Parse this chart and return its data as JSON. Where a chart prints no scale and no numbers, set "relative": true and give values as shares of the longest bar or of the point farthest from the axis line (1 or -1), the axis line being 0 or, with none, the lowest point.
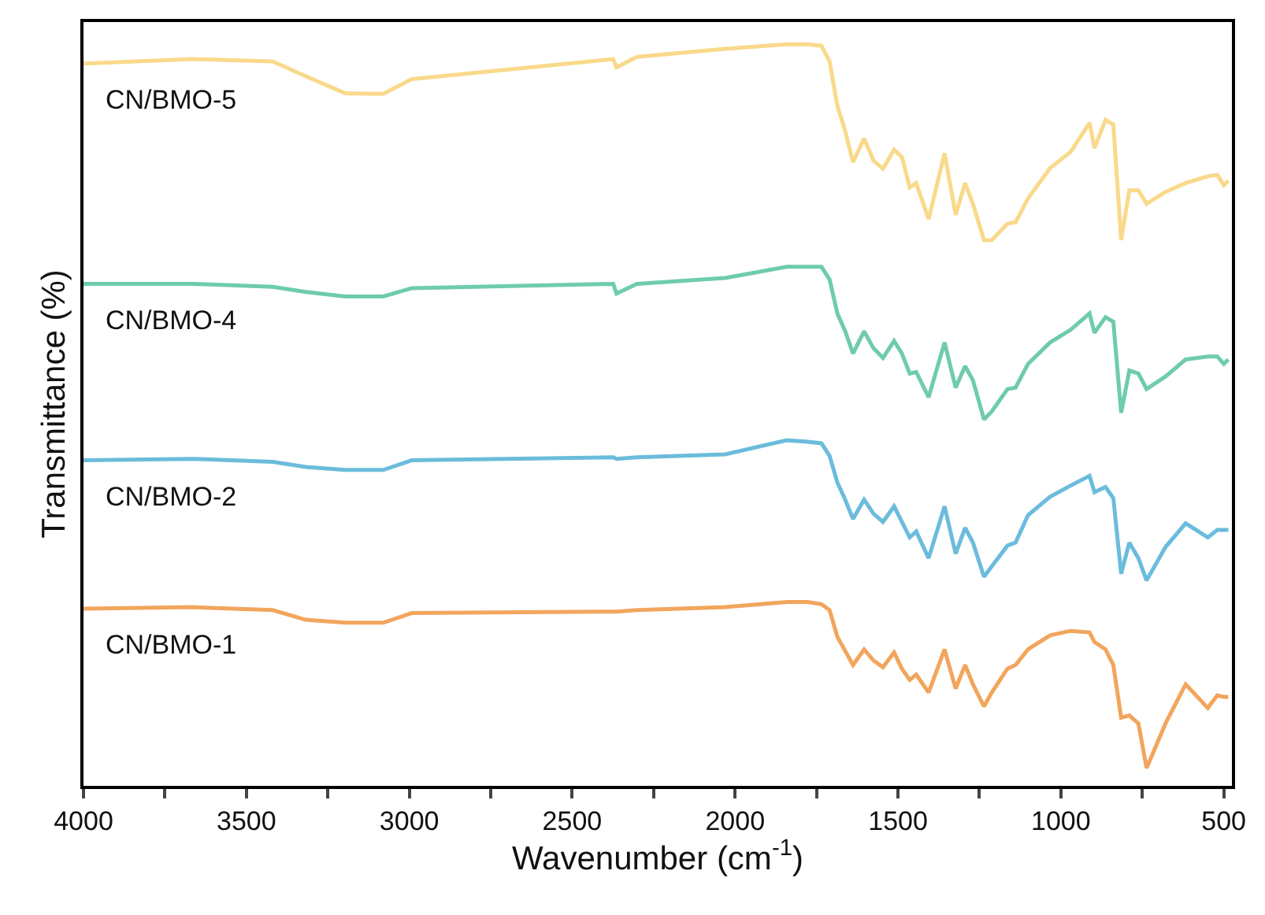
{
  "chart_data": {
    "type": "line",
    "relative": true,
    "xlabel": "Wavenumber (cm$^{-1}$)",
    "ylabel": "Transmittance (%)",
    "legend": false,
    "marker": "none",
    "line_style": "solid",
    "xlim": [
      4000,
      475
    ],
    "xticks": [
      4000,
      {
        "value": 3750,
        "label": null
      },
      3500,
      {
        "value": 3250,
        "label": null
      },
      3000,
      {
        "value": 2750,
        "label": null
      },
      2500,
      {
        "value": 2250,
        "label": null
      },
      2000,
      {
        "value": 1750,
        "label": null
      },
      1500,
      {
        "value": 1250,
        "label": null
      },
      1000,
      {
        "value": 750,
        "label": null
      },
      500
    ],
    "x": [
      4000,
      3666,
      3419,
      3318,
      3197,
      3080,
      2993,
      2374,
      2364,
      2301,
      2030,
      1841,
      1778,
      1735,
      1710,
      1686,
      1662,
      1638,
      1604,
      1575,
      1546,
      1512,
      1488,
      1464,
      1444,
      1406,
      1357,
      1323,
      1294,
      1270,
      1236,
      1212,
      1164,
      1139,
      1101,
      1033,
      970,
      912,
      897,
      863,
      839,
      815,
      790,
      762,
      737,
      679,
      617,
      549,
      520,
      500,
      486
    ],
    "series": [
      {
        "name": "CN/BMO-5",
        "color": "#f9d98a",
        "values": [
          0.974,
          0.98,
          0.977,
          0.957,
          0.934,
          0.933,
          0.953,
          0.98,
          0.969,
          0.983,
          0.994,
          1.0,
          1.0,
          0.998,
          0.977,
          0.917,
          0.883,
          0.841,
          0.873,
          0.843,
          0.832,
          0.858,
          0.848,
          0.807,
          0.813,
          0.764,
          0.853,
          0.77,
          0.813,
          0.785,
          0.736,
          0.736,
          0.758,
          0.76,
          0.792,
          0.833,
          0.855,
          0.894,
          0.86,
          0.898,
          0.892,
          0.736,
          0.803,
          0.803,
          0.785,
          0.801,
          0.813,
          0.822,
          0.824,
          0.81,
          0.816
        ]
      },
      {
        "name": "CN/BMO-4",
        "color": "#6ecbaf",
        "values": [
          0.677,
          0.677,
          0.673,
          0.666,
          0.66,
          0.66,
          0.671,
          0.677,
          0.664,
          0.677,
          0.685,
          0.7,
          0.7,
          0.7,
          0.683,
          0.637,
          0.613,
          0.583,
          0.613,
          0.59,
          0.577,
          0.6,
          0.583,
          0.556,
          0.558,
          0.524,
          0.598,
          0.537,
          0.566,
          0.547,
          0.494,
          0.505,
          0.535,
          0.537,
          0.569,
          0.598,
          0.615,
          0.637,
          0.611,
          0.632,
          0.626,
          0.503,
          0.56,
          0.556,
          0.535,
          0.552,
          0.575,
          0.579,
          0.579,
          0.569,
          0.575
        ]
      },
      {
        "name": "CN/BMO-2",
        "color": "#6bbcdc",
        "values": [
          0.439,
          0.441,
          0.437,
          0.43,
          0.426,
          0.426,
          0.439,
          0.443,
          0.441,
          0.443,
          0.447,
          0.466,
          0.464,
          0.462,
          0.445,
          0.409,
          0.386,
          0.36,
          0.386,
          0.367,
          0.356,
          0.377,
          0.356,
          0.335,
          0.343,
          0.307,
          0.377,
          0.313,
          0.348,
          0.328,
          0.282,
          0.296,
          0.324,
          0.328,
          0.365,
          0.39,
          0.405,
          0.418,
          0.396,
          0.403,
          0.388,
          0.286,
          0.328,
          0.307,
          0.277,
          0.322,
          0.354,
          0.335,
          0.345,
          0.345,
          0.345
        ]
      },
      {
        "name": "CN/BMO-1",
        "color": "#f2a55c",
        "values": [
          0.239,
          0.241,
          0.237,
          0.224,
          0.22,
          0.22,
          0.233,
          0.235,
          0.235,
          0.237,
          0.241,
          0.248,
          0.248,
          0.245,
          0.237,
          0.201,
          0.182,
          0.163,
          0.184,
          0.169,
          0.16,
          0.18,
          0.158,
          0.143,
          0.15,
          0.126,
          0.184,
          0.131,
          0.163,
          0.137,
          0.107,
          0.126,
          0.158,
          0.163,
          0.184,
          0.203,
          0.209,
          0.207,
          0.194,
          0.184,
          0.163,
          0.092,
          0.095,
          0.084,
          0.024,
          0.084,
          0.137,
          0.105,
          0.122,
          0.12,
          0.12
        ]
      }
    ]
  }
}
